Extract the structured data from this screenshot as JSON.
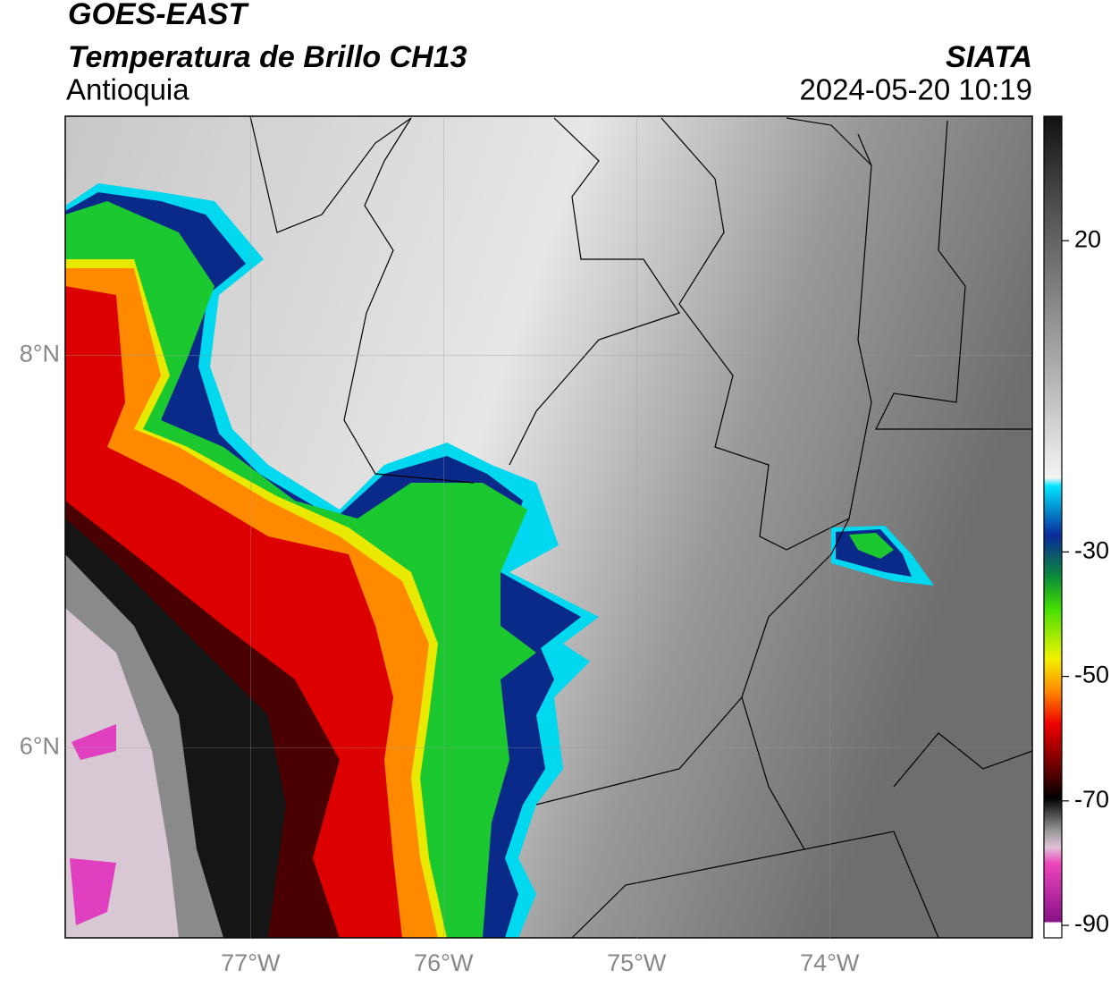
{
  "header": {
    "title": "GOES-EAST",
    "subtitle": "Temperatura de Brillo CH13",
    "region": "Antioquia",
    "source": "SIATA",
    "datetime": "2024-05-20 10:19"
  },
  "map": {
    "xlim": [
      -77.96,
      -72.95
    ],
    "ylim": [
      5.03,
      9.22
    ],
    "xticks": [
      {
        "value": -77,
        "label": "77°W"
      },
      {
        "value": -76,
        "label": "76°W"
      },
      {
        "value": -75,
        "label": "75°W"
      },
      {
        "value": -74,
        "label": "74°W"
      }
    ],
    "yticks": [
      {
        "value": 8,
        "label": "8°N"
      },
      {
        "value": 6,
        "label": "6°N"
      }
    ]
  },
  "colorbar": {
    "lim": [
      -92,
      40
    ],
    "ticks": [
      20,
      -30,
      -50,
      -70,
      -90
    ]
  }
}
